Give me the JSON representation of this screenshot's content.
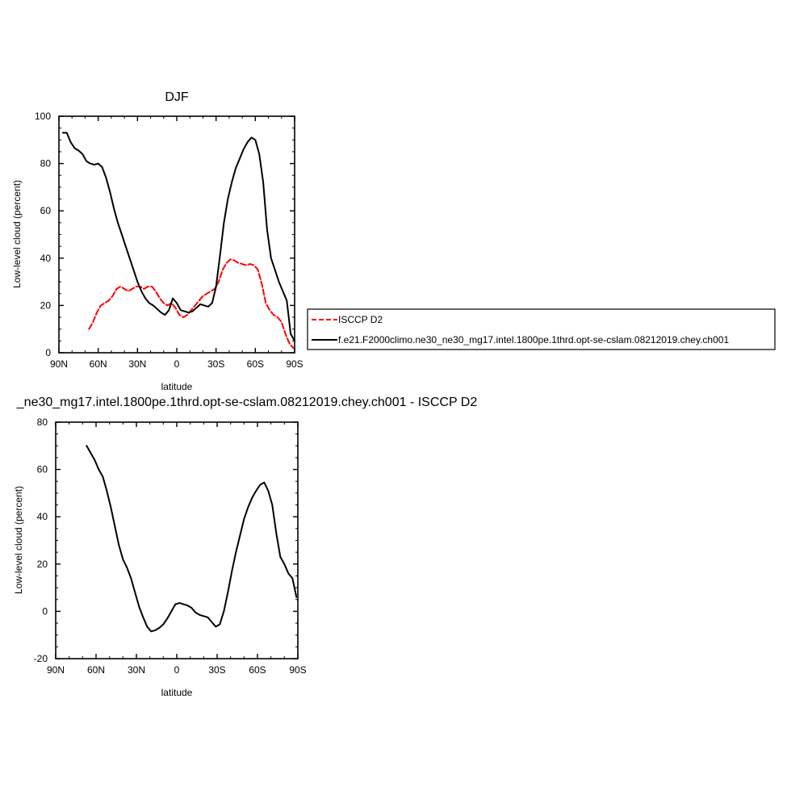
{
  "chart_data": [
    {
      "type": "line",
      "title": "DJF",
      "xlabel": "latitude",
      "ylabel": "Low-level cloud (percent)",
      "xlim": [
        -90,
        90
      ],
      "ylim": [
        0,
        100
      ],
      "x_ticks": [
        -90,
        -60,
        -30,
        0,
        30,
        60,
        90
      ],
      "x_tick_labels": [
        "90N",
        "60N",
        "30N",
        "0",
        "30S",
        "60S",
        "90S"
      ],
      "y_ticks": [
        0,
        20,
        40,
        60,
        80,
        100
      ],
      "y_tick_labels": [
        "0",
        "20",
        "40",
        "60",
        "80",
        "100"
      ],
      "grid": false,
      "legend_position": "right",
      "series": [
        {
          "name": "ISCCP D2",
          "color": "#ff0000",
          "dash": "dashed",
          "x": [
            -67,
            -64,
            -61,
            -58,
            -55,
            -52,
            -49,
            -46,
            -43,
            -40,
            -37,
            -34,
            -31,
            -28,
            -25,
            -22,
            -19,
            -16,
            -13,
            -10,
            -7,
            -4,
            -1,
            2,
            5,
            8,
            11,
            14,
            17,
            20,
            23,
            26,
            29,
            32,
            35,
            38,
            41,
            44,
            47,
            50,
            53,
            56,
            59,
            62,
            65,
            68,
            71,
            74,
            77,
            80,
            83,
            86,
            89
          ],
          "y": [
            10,
            13,
            17,
            20,
            21,
            22,
            24,
            27,
            28,
            27,
            26,
            27,
            28,
            28,
            27,
            28,
            28,
            26,
            23,
            21,
            20,
            21,
            19,
            16,
            15,
            16,
            18,
            20,
            22,
            24,
            25,
            26,
            27,
            30,
            35,
            38,
            39.5,
            39,
            38,
            37.5,
            37,
            37.5,
            37,
            35,
            29,
            21,
            18,
            16,
            15,
            13,
            8,
            4,
            2
          ]
        },
        {
          "name": "f.e21.F2000climo.ne30_ne30_mg17.intel.1800pe.1thrd.opt-se-cslam.08212019.chey.ch001",
          "color": "#000000",
          "dash": "solid",
          "x": [
            -87,
            -84,
            -81,
            -78,
            -75,
            -72,
            -69,
            -66,
            -63,
            -60,
            -57,
            -54,
            -51,
            -48,
            -45,
            -42,
            -39,
            -36,
            -33,
            -30,
            -27,
            -24,
            -21,
            -18,
            -15,
            -12,
            -9,
            -6,
            -3,
            0,
            3,
            6,
            9,
            12,
            15,
            18,
            21,
            24,
            27,
            30,
            33,
            36,
            39,
            42,
            45,
            48,
            51,
            54,
            57,
            60,
            63,
            66,
            69,
            72,
            75,
            78,
            81,
            84,
            87,
            90
          ],
          "y": [
            93,
            93,
            89,
            86.5,
            85.5,
            84,
            81,
            80,
            79.5,
            80,
            78.5,
            74,
            68,
            61,
            55,
            50,
            45,
            40,
            35,
            30,
            26,
            23,
            21,
            20,
            18.5,
            17,
            16,
            18,
            23,
            21,
            18,
            17.5,
            17,
            17.5,
            19,
            20.5,
            20,
            19.5,
            21,
            28,
            41,
            55,
            65,
            72,
            78,
            82,
            86,
            89,
            91,
            90,
            84,
            72,
            52,
            40,
            35,
            30,
            26,
            22,
            8,
            5
          ]
        }
      ]
    },
    {
      "type": "line",
      "title": "_ne30_mg17.intel.1800pe.1thrd.opt-se-cslam.08212019.chey.ch001 - ISCCP D2",
      "xlabel": "latitude",
      "ylabel": "Low-level cloud (percent)",
      "xlim": [
        -90,
        90
      ],
      "ylim": [
        -20,
        80
      ],
      "x_ticks": [
        -90,
        -60,
        -30,
        0,
        30,
        60,
        90
      ],
      "x_tick_labels": [
        "90N",
        "60N",
        "30N",
        "0",
        "30S",
        "60S",
        "90S"
      ],
      "y_ticks": [
        -20,
        0,
        20,
        40,
        60,
        80
      ],
      "y_tick_labels": [
        "-20",
        "0",
        "20",
        "40",
        "60",
        "80"
      ],
      "grid": false,
      "series": [
        {
          "color": "#000000",
          "dash": "solid",
          "x": [
            -67,
            -64,
            -61,
            -58,
            -55,
            -52,
            -49,
            -46,
            -43,
            -40,
            -37,
            -34,
            -31,
            -28,
            -25,
            -22,
            -19,
            -16,
            -13,
            -10,
            -7,
            -4,
            -1,
            2,
            5,
            8,
            11,
            14,
            17,
            20,
            23,
            26,
            29,
            32,
            35,
            38,
            41,
            44,
            47,
            50,
            53,
            56,
            59,
            62,
            65,
            68,
            71,
            74,
            77,
            80,
            83,
            86,
            89
          ],
          "y": [
            70,
            67,
            64,
            60,
            57,
            51,
            44,
            36,
            28,
            22,
            18.5,
            14,
            8,
            2,
            -2.5,
            -6.5,
            -8.5,
            -8,
            -7,
            -5.5,
            -3,
            0,
            3,
            3.5,
            3,
            2.5,
            1.5,
            -0.5,
            -1.5,
            -2,
            -2.5,
            -4.5,
            -6.5,
            -5.5,
            0,
            8,
            17,
            25,
            32,
            39,
            44,
            48,
            51,
            53.5,
            54.5,
            51,
            45,
            33,
            23,
            20,
            16,
            14,
            6
          ]
        }
      ]
    }
  ]
}
